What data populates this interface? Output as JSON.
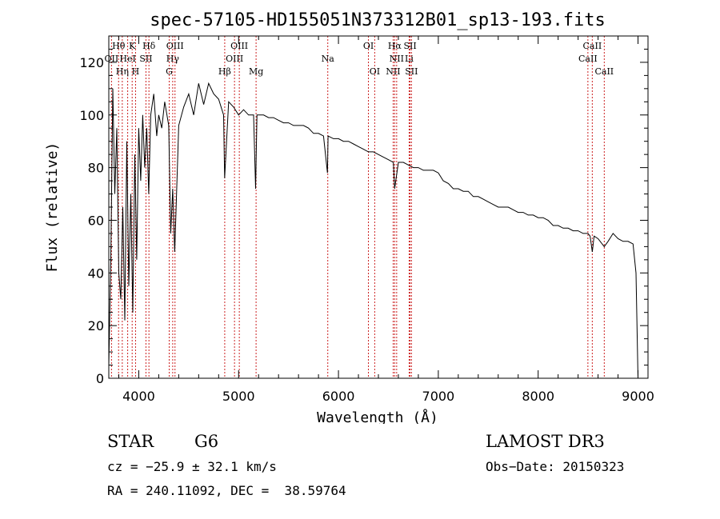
{
  "chart_data": {
    "type": "line",
    "title": "spec-57105-HD155051N373312B01_sp13-193.fits",
    "xlabel": "Wavelength (Å)",
    "ylabel": "Flux (relative)",
    "xlim": [
      3700,
      9100
    ],
    "ylim": [
      0,
      130
    ],
    "x_ticks": [
      4000,
      5000,
      6000,
      7000,
      8000,
      9000
    ],
    "y_ticks": [
      0,
      20,
      40,
      60,
      80,
      100,
      120
    ],
    "grid": false,
    "series": [
      {
        "name": "spectrum",
        "x": [
          3700,
          3720,
          3740,
          3760,
          3780,
          3800,
          3820,
          3840,
          3860,
          3880,
          3900,
          3920,
          3940,
          3960,
          3980,
          4000,
          4020,
          4040,
          4060,
          4080,
          4100,
          4120,
          4150,
          4180,
          4200,
          4230,
          4260,
          4300,
          4320,
          4340,
          4360,
          4400,
          4450,
          4500,
          4550,
          4600,
          4650,
          4700,
          4750,
          4800,
          4850,
          4860,
          4900,
          4950,
          5000,
          5050,
          5100,
          5150,
          5170,
          5184,
          5200,
          5250,
          5300,
          5350,
          5400,
          5450,
          5500,
          5550,
          5600,
          5650,
          5700,
          5750,
          5800,
          5850,
          5890,
          5896,
          5950,
          6000,
          6050,
          6100,
          6150,
          6200,
          6250,
          6300,
          6350,
          6400,
          6450,
          6500,
          6550,
          6563,
          6600,
          6650,
          6700,
          6750,
          6800,
          6850,
          6900,
          6950,
          7000,
          7050,
          7100,
          7150,
          7200,
          7250,
          7300,
          7350,
          7400,
          7450,
          7500,
          7550,
          7600,
          7650,
          7700,
          7750,
          7800,
          7850,
          7900,
          7950,
          8000,
          8050,
          8100,
          8150,
          8200,
          8250,
          8300,
          8350,
          8400,
          8450,
          8498,
          8520,
          8542,
          8560,
          8600,
          8662,
          8700,
          8750,
          8800,
          8850,
          8900,
          8950,
          8980,
          9000
        ],
        "y": [
          5,
          45,
          110,
          70,
          95,
          40,
          30,
          65,
          22,
          90,
          35,
          70,
          25,
          85,
          45,
          95,
          75,
          100,
          80,
          95,
          70,
          100,
          108,
          92,
          100,
          95,
          105,
          96,
          55,
          72,
          48,
          96,
          103,
          108,
          100,
          112,
          104,
          112,
          108,
          106,
          100,
          76,
          105,
          103,
          100,
          102,
          100,
          100,
          72,
          100,
          100,
          100,
          99,
          99,
          98,
          97,
          97,
          96,
          96,
          96,
          95,
          93,
          93,
          92,
          78,
          92,
          91,
          91,
          90,
          90,
          89,
          88,
          87,
          86,
          86,
          85,
          84,
          83,
          82,
          72,
          82,
          82,
          81,
          80,
          80,
          79,
          79,
          79,
          78,
          75,
          74,
          72,
          72,
          71,
          71,
          69,
          69,
          68,
          67,
          66,
          65,
          65,
          65,
          64,
          63,
          63,
          62,
          62,
          61,
          61,
          60,
          58,
          58,
          57,
          57,
          56,
          56,
          55,
          55,
          54,
          48,
          54,
          53,
          50,
          52,
          55,
          53,
          52,
          52,
          51,
          40,
          0
        ]
      }
    ],
    "line_labels": [
      {
        "name": "Hθ",
        "x": 3798,
        "row": 0
      },
      {
        "name": "K",
        "x": 3934,
        "row": 0
      },
      {
        "name": "Hδ",
        "x": 4102,
        "row": 0
      },
      {
        "name": "OIII",
        "x": 4363,
        "row": 0
      },
      {
        "name": "OIII",
        "x": 5007,
        "row": 0
      },
      {
        "name": "OI",
        "x": 6300,
        "row": 0
      },
      {
        "name": "Hα",
        "x": 6563,
        "row": 0
      },
      {
        "name": "SII",
        "x": 6717,
        "row": 0
      },
      {
        "name": "CaII",
        "x": 8542,
        "row": 0
      },
      {
        "name": "OII",
        "x": 3727,
        "row": 1
      },
      {
        "name": "HeI",
        "x": 3889,
        "row": 1
      },
      {
        "name": "SII",
        "x": 4072,
        "row": 1
      },
      {
        "name": "Hγ",
        "x": 4340,
        "row": 1
      },
      {
        "name": "OIII",
        "x": 4959,
        "row": 1
      },
      {
        "name": "Na",
        "x": 5893,
        "row": 1
      },
      {
        "name": "NII",
        "x": 6583,
        "row": 1
      },
      {
        "name": "Li",
        "x": 6708,
        "row": 1
      },
      {
        "name": "CaII",
        "x": 8498,
        "row": 1
      },
      {
        "name": "Hη",
        "x": 3835,
        "row": 2
      },
      {
        "name": "H",
        "x": 3968,
        "row": 2
      },
      {
        "name": "G",
        "x": 4305,
        "row": 2
      },
      {
        "name": "Hβ",
        "x": 4861,
        "row": 2
      },
      {
        "name": "Mg",
        "x": 5175,
        "row": 2
      },
      {
        "name": "OI",
        "x": 6363,
        "row": 2
      },
      {
        "name": "NII",
        "x": 6548,
        "row": 2
      },
      {
        "name": "SII",
        "x": 6731,
        "row": 2
      },
      {
        "name": "CaII",
        "x": 8662,
        "row": 2
      }
    ]
  },
  "info": {
    "object_class": "STAR",
    "subclass": "G6",
    "survey": "LAMOST DR3",
    "cz": "cz = −25.9 ± 32.1 km/s",
    "obs_date": "Obs−Date: 20150323",
    "coords": "RA = 240.11092, DEC =  38.59764"
  }
}
